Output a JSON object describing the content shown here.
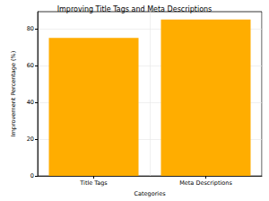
{
  "chart_data": {
    "type": "bar",
    "title": "Improving Title Tags and Meta Descriptions",
    "x_label": "Categories",
    "y_label": "Improvement Percentage (%)",
    "categories": [
      "Title Tags",
      "Meta Descriptions"
    ],
    "values": [
      75,
      85
    ],
    "color": "#ffad00",
    "ylim": [
      0,
      89.25
    ],
    "yticks": [
      0,
      20,
      40,
      60,
      80
    ],
    "grid": true
  }
}
